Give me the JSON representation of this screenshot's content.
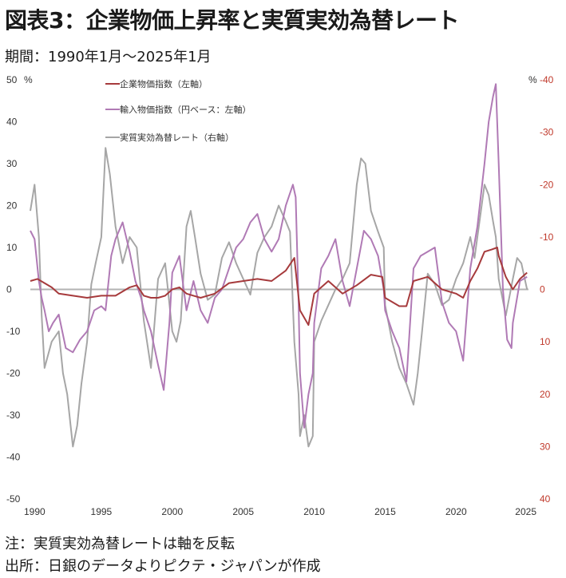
{
  "title": "図表3：企業物価上昇率と実質実効為替レート",
  "subtitle": "期間：1990年1月～2025年1月",
  "note": "注：実質実効為替レートは軸を反転",
  "source": "出所：日銀のデータよりピクテ・ジャパンが作成",
  "chart_data": {
    "type": "line",
    "x_unit": "year",
    "xlim": [
      1990,
      2025.1
    ],
    "left_axis": {
      "unit": "%",
      "ylim": [
        -50,
        50
      ],
      "ticks": [
        50,
        40,
        30,
        20,
        10,
        0,
        -10,
        -20,
        -30,
        -40,
        -50
      ]
    },
    "right_axis": {
      "unit": "%",
      "inverted": true,
      "ylim": [
        -40,
        40
      ],
      "ticks": [
        -40,
        -30,
        -20,
        -10,
        0,
        10,
        20,
        30,
        40
      ]
    },
    "x_ticks": [
      "1990",
      "1995",
      "2000",
      "2005",
      "2010",
      "2015",
      "2020",
      "2025"
    ],
    "legend_position": "top-left",
    "colors": {
      "cgpi": "#a63a3c",
      "import": "#b07ab5",
      "reer": "#a6a6a6",
      "right_ticks": "#c0392b",
      "zero": "#b3b3b3"
    },
    "series": [
      {
        "name": "企業物価指数（左軸）",
        "axis": "left",
        "color": "#a63a3c",
        "points": [
          [
            1990,
            2
          ],
          [
            1990.5,
            2.5
          ],
          [
            1991,
            1.5
          ],
          [
            1991.5,
            0.5
          ],
          [
            1992,
            -1
          ],
          [
            1993,
            -1.5
          ],
          [
            1994,
            -2
          ],
          [
            1995,
            -1.5
          ],
          [
            1996,
            -1.5
          ],
          [
            1997,
            0.5
          ],
          [
            1997.5,
            1
          ],
          [
            1998,
            -1.5
          ],
          [
            1998.5,
            -2
          ],
          [
            1999,
            -2
          ],
          [
            1999.5,
            -1.5
          ],
          [
            2000,
            0
          ],
          [
            2000.5,
            0.5
          ],
          [
            2001,
            -1
          ],
          [
            2001.5,
            -1.5
          ],
          [
            2002,
            -2
          ],
          [
            2003,
            -1
          ],
          [
            2004,
            1.5
          ],
          [
            2005,
            2
          ],
          [
            2006,
            2.5
          ],
          [
            2007,
            2
          ],
          [
            2008,
            4.5
          ],
          [
            2008.6,
            7.5
          ],
          [
            2009,
            -5
          ],
          [
            2009.6,
            -8.5
          ],
          [
            2010,
            -1
          ],
          [
            2010.5,
            0.5
          ],
          [
            2011,
            2
          ],
          [
            2012,
            -1
          ],
          [
            2013,
            1
          ],
          [
            2014,
            3.5
          ],
          [
            2014.8,
            3
          ],
          [
            2015,
            -2
          ],
          [
            2016,
            -4
          ],
          [
            2016.5,
            -4
          ],
          [
            2017,
            2
          ],
          [
            2018,
            3
          ],
          [
            2019,
            0
          ],
          [
            2020,
            -1
          ],
          [
            2020.5,
            -2
          ],
          [
            2021,
            2
          ],
          [
            2021.5,
            5
          ],
          [
            2022,
            9
          ],
          [
            2022.5,
            9.5
          ],
          [
            2022.9,
            10
          ],
          [
            2023,
            8
          ],
          [
            2023.5,
            3
          ],
          [
            2024,
            0
          ],
          [
            2024.5,
            2.5
          ],
          [
            2025,
            4
          ]
        ]
      },
      {
        "name": "輸入物価指数（円ベース：左軸）",
        "axis": "left",
        "color": "#b07ab5",
        "points": [
          [
            1990,
            14
          ],
          [
            1990.3,
            12
          ],
          [
            1990.6,
            2
          ],
          [
            1990.8,
            -2
          ],
          [
            1991,
            -5
          ],
          [
            1991.3,
            -10
          ],
          [
            1991.6,
            -8
          ],
          [
            1992,
            -6
          ],
          [
            1992.5,
            -14
          ],
          [
            1993,
            -15
          ],
          [
            1993.5,
            -12
          ],
          [
            1994,
            -10
          ],
          [
            1994.5,
            -5
          ],
          [
            1995,
            -4
          ],
          [
            1995.3,
            -5
          ],
          [
            1995.7,
            8
          ],
          [
            1996,
            12
          ],
          [
            1996.5,
            16
          ],
          [
            1997,
            9
          ],
          [
            1997.4,
            2
          ],
          [
            1997.8,
            -2
          ],
          [
            1998,
            -5
          ],
          [
            1998.5,
            -10
          ],
          [
            1999,
            -18
          ],
          [
            1999.4,
            -24
          ],
          [
            1999.8,
            -8
          ],
          [
            2000,
            4
          ],
          [
            2000.5,
            8
          ],
          [
            2001,
            -5
          ],
          [
            2001.5,
            2
          ],
          [
            2002,
            -5
          ],
          [
            2002.5,
            -8
          ],
          [
            2003,
            -2
          ],
          [
            2003.5,
            0
          ],
          [
            2004,
            5
          ],
          [
            2004.5,
            10
          ],
          [
            2005,
            12
          ],
          [
            2005.5,
            16
          ],
          [
            2006,
            18
          ],
          [
            2006.5,
            12
          ],
          [
            2007,
            9
          ],
          [
            2007.5,
            12
          ],
          [
            2008,
            20
          ],
          [
            2008.5,
            25
          ],
          [
            2008.7,
            22
          ],
          [
            2008.9,
            -3
          ],
          [
            2009,
            -20
          ],
          [
            2009.3,
            -33
          ],
          [
            2009.6,
            -25
          ],
          [
            2009.9,
            -20
          ],
          [
            2010,
            -8
          ],
          [
            2010.5,
            5
          ],
          [
            2011,
            8
          ],
          [
            2011.5,
            12
          ],
          [
            2012,
            2
          ],
          [
            2012.5,
            -4
          ],
          [
            2013,
            5
          ],
          [
            2013.5,
            14
          ],
          [
            2014,
            12
          ],
          [
            2014.5,
            8
          ],
          [
            2014.9,
            0
          ],
          [
            2015,
            -5
          ],
          [
            2015.5,
            -10
          ],
          [
            2016,
            -14
          ],
          [
            2016.5,
            -22
          ],
          [
            2017,
            5
          ],
          [
            2017.5,
            8
          ],
          [
            2018,
            9
          ],
          [
            2018.5,
            10
          ],
          [
            2019,
            -3
          ],
          [
            2019.5,
            -8
          ],
          [
            2020,
            -10
          ],
          [
            2020.5,
            -17
          ],
          [
            2021,
            5
          ],
          [
            2021.5,
            15
          ],
          [
            2022,
            30
          ],
          [
            2022.3,
            40
          ],
          [
            2022.6,
            46
          ],
          [
            2022.8,
            49
          ],
          [
            2023,
            30
          ],
          [
            2023.3,
            0
          ],
          [
            2023.6,
            -12
          ],
          [
            2023.9,
            -14
          ],
          [
            2024,
            -8
          ],
          [
            2024.5,
            2
          ],
          [
            2025,
            3
          ]
        ]
      },
      {
        "name": "実質実効為替レート（右軸）",
        "axis": "right",
        "color": "#a6a6a6",
        "points": [
          [
            1990,
            -15
          ],
          [
            1990.3,
            -20
          ],
          [
            1990.6,
            -10
          ],
          [
            1990.8,
            5
          ],
          [
            1991,
            15
          ],
          [
            1991.5,
            10
          ],
          [
            1992,
            8
          ],
          [
            1992.3,
            16
          ],
          [
            1992.6,
            20
          ],
          [
            1993,
            30
          ],
          [
            1993.3,
            26
          ],
          [
            1993.6,
            18
          ],
          [
            1994,
            10
          ],
          [
            1994.3,
            -1
          ],
          [
            1994.6,
            -5
          ],
          [
            1995,
            -10
          ],
          [
            1995.3,
            -27
          ],
          [
            1995.6,
            -22
          ],
          [
            1996,
            -12
          ],
          [
            1996.5,
            -5
          ],
          [
            1997,
            -10
          ],
          [
            1997.5,
            -8
          ],
          [
            1998,
            6
          ],
          [
            1998.5,
            15
          ],
          [
            1999,
            -2
          ],
          [
            1999.5,
            -5
          ],
          [
            2000,
            8
          ],
          [
            2000.3,
            10
          ],
          [
            2000.6,
            6
          ],
          [
            2001,
            -12
          ],
          [
            2001.3,
            -15
          ],
          [
            2001.6,
            -10
          ],
          [
            2002,
            -3
          ],
          [
            2002.5,
            2
          ],
          [
            2003,
            1
          ],
          [
            2003.5,
            -6
          ],
          [
            2004,
            -9
          ],
          [
            2004.5,
            -5
          ],
          [
            2005,
            -2
          ],
          [
            2005.5,
            1
          ],
          [
            2006,
            -7
          ],
          [
            2006.5,
            -10
          ],
          [
            2007,
            -12
          ],
          [
            2007.5,
            -16
          ],
          [
            2008,
            -13
          ],
          [
            2008.3,
            -11
          ],
          [
            2008.6,
            10
          ],
          [
            2008.9,
            20
          ],
          [
            2009,
            28
          ],
          [
            2009.3,
            24
          ],
          [
            2009.6,
            30
          ],
          [
            2009.9,
            28
          ],
          [
            2010,
            10
          ],
          [
            2010.5,
            6
          ],
          [
            2011,
            3
          ],
          [
            2011.5,
            0
          ],
          [
            2012,
            -2
          ],
          [
            2012.5,
            -5
          ],
          [
            2013,
            -20
          ],
          [
            2013.3,
            -25
          ],
          [
            2013.6,
            -24
          ],
          [
            2014,
            -15
          ],
          [
            2014.5,
            -11
          ],
          [
            2014.9,
            -8
          ],
          [
            2015,
            3
          ],
          [
            2015.5,
            10
          ],
          [
            2016,
            15
          ],
          [
            2016.5,
            18
          ],
          [
            2017,
            22
          ],
          [
            2017.3,
            16
          ],
          [
            2017.6,
            8
          ],
          [
            2018,
            -3
          ],
          [
            2018.5,
            -1
          ],
          [
            2019,
            3
          ],
          [
            2019.5,
            2
          ],
          [
            2020,
            -2
          ],
          [
            2020.5,
            -5
          ],
          [
            2021,
            -10
          ],
          [
            2021.3,
            -6
          ],
          [
            2021.6,
            -12
          ],
          [
            2022,
            -20
          ],
          [
            2022.3,
            -18
          ],
          [
            2022.6,
            -13
          ],
          [
            2022.8,
            -10
          ],
          [
            2023,
            -2
          ],
          [
            2023.5,
            5
          ],
          [
            2024,
            -2
          ],
          [
            2024.3,
            -6
          ],
          [
            2024.6,
            -5
          ],
          [
            2025,
            0
          ]
        ]
      }
    ]
  }
}
